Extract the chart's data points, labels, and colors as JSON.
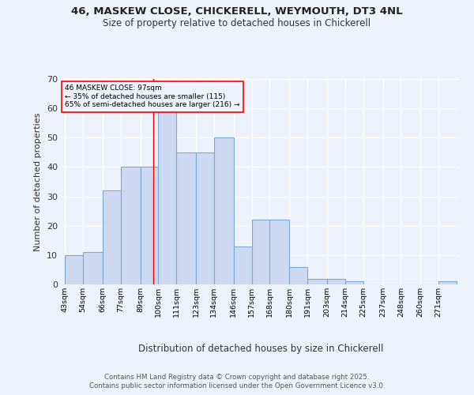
{
  "title1": "46, MASKEW CLOSE, CHICKERELL, WEYMOUTH, DT3 4NL",
  "title2": "Size of property relative to detached houses in Chickerell",
  "xlabel": "Distribution of detached houses by size in Chickerell",
  "ylabel": "Number of detached properties",
  "bins": [
    43,
    54,
    66,
    77,
    89,
    100,
    111,
    123,
    134,
    146,
    157,
    168,
    180,
    191,
    203,
    214,
    225,
    237,
    248,
    260,
    271
  ],
  "counts": [
    10,
    11,
    32,
    40,
    40,
    59,
    45,
    45,
    50,
    13,
    22,
    22,
    6,
    2,
    2,
    1,
    0,
    0,
    0,
    0,
    1
  ],
  "bar_color": "#ccd9f0",
  "bar_edge_color": "#7aaad4",
  "red_line_x": 97,
  "ylim": [
    0,
    70
  ],
  "yticks": [
    0,
    10,
    20,
    30,
    40,
    50,
    60,
    70
  ],
  "annotation_line1": "46 MASKEW CLOSE: 97sqm",
  "annotation_line2": "← 35% of detached houses are smaller (115)",
  "annotation_line3": "65% of semi-detached houses are larger (216) →",
  "footer1": "Contains HM Land Registry data © Crown copyright and database right 2025.",
  "footer2": "Contains public sector information licensed under the Open Government Licence v3.0.",
  "bg_color": "#eef2fb"
}
